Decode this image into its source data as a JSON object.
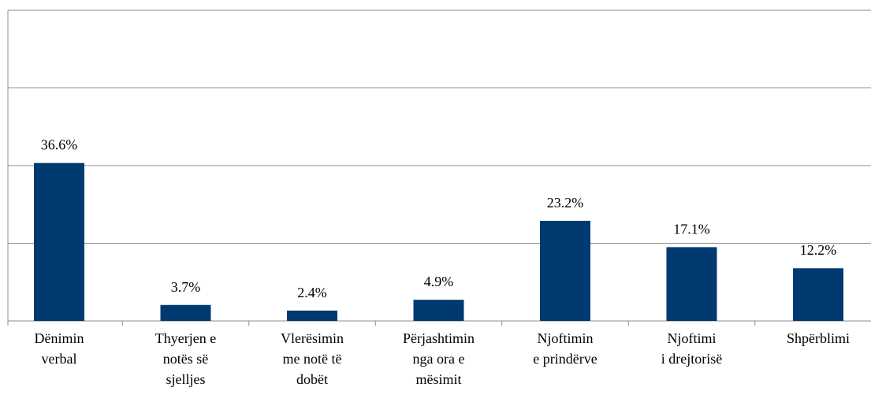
{
  "chart_data": {
    "type": "bar",
    "categories": [
      "Dënimin\nverbal",
      "Thyerjen e\nnotës së\nsjelljes",
      "Vlerësimin\nme notë të\ndobët",
      "Përjashtimin\nnga ora e\nmësimit",
      "Njoftimin\ne prindërve",
      "Njoftimi\ni drejtorisë",
      "Shpërblimi"
    ],
    "values": [
      36.6,
      3.7,
      2.4,
      4.9,
      23.2,
      17.1,
      12.2
    ],
    "value_labels": [
      "36.6%",
      "3.7%",
      "2.4%",
      "4.9%",
      "23.2%",
      "17.1%",
      "12.2%"
    ],
    "color": "#003a70",
    "ylim": [
      0,
      72
    ],
    "yticks": [
      0,
      18,
      36,
      54,
      72
    ],
    "grid": true
  }
}
